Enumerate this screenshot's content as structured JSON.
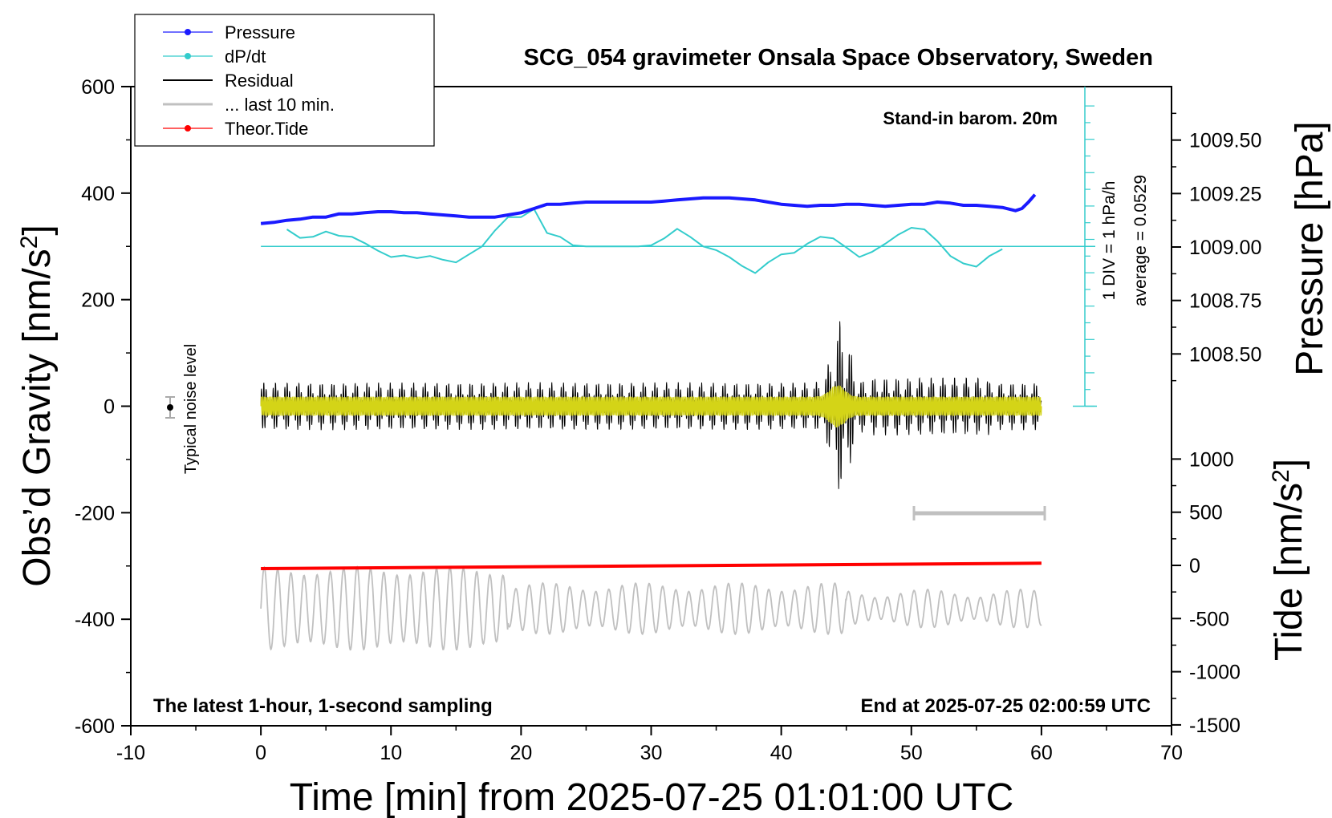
{
  "chart_data": {
    "type": "line",
    "title": "SCG_054 gravimeter Onsala Space Observatory, Sweden",
    "xlabel": "Time [min] from 2025-07-25 01:01:00 UTC",
    "ylabel_left": "Obs’d Gravity [nm/s²]",
    "ylabel_left_main": "Obs’d Gravity [nm/s",
    "ylabel_right_top_main": "Pressure [hPa]",
    "ylabel_right_bottom": "Tide [nm/s²]",
    "ylabel_right_bottom_main": "Tide [nm/s",
    "superscript": "2",
    "ylabel_right_top": "Pressure [hPa]",
    "xlim": [
      -10,
      70
    ],
    "ylim_left": [
      -600,
      600
    ],
    "ylim_right_top": [
      1008.25,
      1009.75
    ],
    "ylim_right_bottom": [
      -1500,
      1000
    ],
    "x_ticks": [
      "-10",
      "0",
      "10",
      "20",
      "30",
      "40",
      "50",
      "60",
      "70"
    ],
    "y_left_ticks": [
      "600",
      "400",
      "200",
      "0",
      "-200",
      "-400",
      "-600"
    ],
    "y_pressure_ticks": [
      "1009.50",
      "1009.25",
      "1009.00",
      "1008.75",
      "1008.50"
    ],
    "y_tide_ticks": [
      "1000",
      "500",
      "0",
      "-500",
      "-1000",
      "-1500"
    ],
    "annotations": {
      "barometer": "Stand-in barom. 20m",
      "dpdt_scale": "1 DIV = 1 hPa/h",
      "dpdt_average": "average = 0.0529",
      "noise": "Typical noise level",
      "bottom_left": "The latest 1-hour, 1-second sampling",
      "bottom_right": "End at 2025-07-25 02:00:59 UTC"
    },
    "legend": {
      "placement": "top-left",
      "entries": [
        {
          "label": "Pressure",
          "color": "#1a1aff",
          "marker": true
        },
        {
          "label": "dP/dt",
          "color": "#33cccc",
          "marker": true
        },
        {
          "label": "Residual",
          "color": "#000000",
          "marker": false
        },
        {
          "label": "... last 10 min.",
          "color": "#c0c0c0",
          "marker": false
        },
        {
          "label": "Theor.Tide",
          "color": "#ff0000",
          "marker": true
        }
      ]
    },
    "series": [
      {
        "name": "Pressure",
        "axis": "pressure",
        "color": "#1a1aff",
        "x": [
          0,
          1,
          2,
          3,
          4,
          5,
          6,
          7,
          8,
          9,
          10,
          11,
          12,
          13,
          14,
          15,
          16,
          17,
          18,
          19,
          20,
          21,
          22,
          23,
          24,
          25,
          26,
          27,
          28,
          29,
          30,
          31,
          32,
          33,
          34,
          35,
          36,
          37,
          38,
          39,
          40,
          41,
          42,
          43,
          44,
          45,
          46,
          47,
          48,
          49,
          50,
          51,
          52,
          53,
          54,
          55,
          56,
          57,
          58,
          58.5,
          59,
          59.5
        ],
        "y": [
          1009.11,
          1009.115,
          1009.125,
          1009.13,
          1009.14,
          1009.14,
          1009.155,
          1009.155,
          1009.16,
          1009.165,
          1009.165,
          1009.16,
          1009.16,
          1009.155,
          1009.15,
          1009.145,
          1009.14,
          1009.14,
          1009.14,
          1009.15,
          1009.16,
          1009.18,
          1009.2,
          1009.2,
          1009.205,
          1009.21,
          1009.21,
          1009.21,
          1009.21,
          1009.21,
          1009.21,
          1009.215,
          1009.22,
          1009.225,
          1009.23,
          1009.23,
          1009.23,
          1009.225,
          1009.22,
          1009.21,
          1009.2,
          1009.195,
          1009.19,
          1009.195,
          1009.195,
          1009.2,
          1009.2,
          1009.195,
          1009.19,
          1009.195,
          1009.2,
          1009.2,
          1009.21,
          1009.205,
          1009.195,
          1009.195,
          1009.19,
          1009.185,
          1009.17,
          1009.18,
          1009.21,
          1009.245
        ]
      },
      {
        "name": "dP/dt",
        "axis": "left",
        "color": "#33cccc",
        "x": [
          2,
          3,
          4,
          5,
          6,
          7,
          8,
          9,
          10,
          11,
          12,
          13,
          14,
          15,
          16,
          17,
          18,
          19,
          20,
          21,
          22,
          23,
          24,
          25,
          26,
          27,
          28,
          29,
          30,
          31,
          32,
          33,
          34,
          35,
          36,
          37,
          38,
          39,
          40,
          41,
          42,
          43,
          44,
          45,
          46,
          47,
          48,
          49,
          50,
          51,
          52,
          53,
          54,
          55,
          56,
          57
        ],
        "y": [
          332,
          316,
          318,
          328,
          320,
          318,
          306,
          292,
          280,
          283,
          278,
          282,
          275,
          270,
          285,
          300,
          330,
          355,
          355,
          370,
          325,
          318,
          302,
          300,
          300,
          300,
          300,
          300,
          302,
          315,
          333,
          318,
          300,
          293,
          280,
          263,
          250,
          270,
          285,
          288,
          305,
          318,
          315,
          298,
          280,
          290,
          305,
          322,
          335,
          332,
          310,
          282,
          268,
          262,
          282,
          295
        ]
      },
      {
        "name": "Residual",
        "axis": "left",
        "color": "#000000",
        "x": [
          0,
          60
        ],
        "y": [
          0,
          0
        ]
      },
      {
        "name": "... last 10 min.",
        "axis": "left",
        "color": "#c0c0c0",
        "x": [
          0,
          60
        ],
        "y": [
          -380,
          -380
        ]
      },
      {
        "name": "Theor.Tide",
        "axis": "tide",
        "color": "#ff0000",
        "x": [
          0,
          60
        ],
        "y": [
          -30,
          20
        ]
      }
    ]
  }
}
